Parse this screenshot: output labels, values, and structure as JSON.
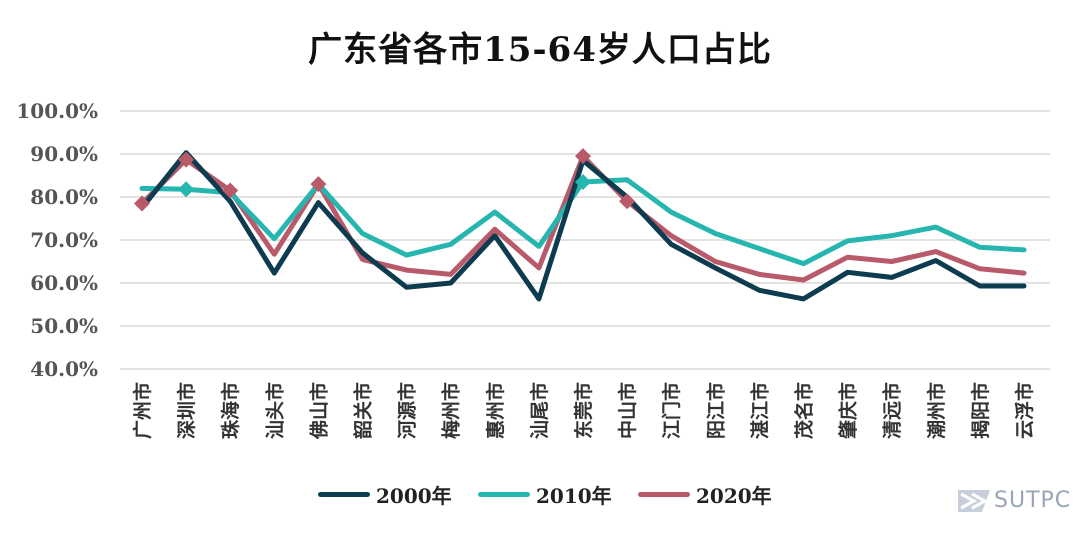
{
  "chart_data": {
    "type": "line",
    "title": "广东省各市15-64岁人口占比",
    "categories": [
      "广州市",
      "深圳市",
      "珠海市",
      "汕头市",
      "佛山市",
      "韶关市",
      "河源市",
      "梅州市",
      "惠州市",
      "汕尾市",
      "东莞市",
      "中山市",
      "江门市",
      "阳江市",
      "湛江市",
      "茂名市",
      "肇庆市",
      "清远市",
      "潮州市",
      "揭阳市",
      "云浮市"
    ],
    "yticks": [
      "100.0%",
      "90.0%",
      "80.0%",
      "70.0%",
      "60.0%",
      "50.0%",
      "40.0%"
    ],
    "ylim": [
      40,
      100
    ],
    "grid": true,
    "legend_position": "bottom",
    "series": [
      {
        "name": "2000年",
        "color": "#0d3b4f",
        "marker": null,
        "values": [
          77.5,
          90.3,
          79.0,
          62.3,
          78.7,
          67.0,
          59.0,
          60.0,
          71.0,
          56.3,
          88.5,
          80.0,
          69.0,
          63.5,
          58.3,
          56.3,
          62.5,
          61.3,
          65.2,
          59.3,
          59.3
        ]
      },
      {
        "name": "2010年",
        "color": "#27b5b0",
        "marker": "diamond",
        "values": [
          82.0,
          81.8,
          81.0,
          70.3,
          83.0,
          71.5,
          66.5,
          69.0,
          76.5,
          68.5,
          83.5,
          84.0,
          76.5,
          71.5,
          68.0,
          64.5,
          69.8,
          71.0,
          73.0,
          68.3,
          67.7
        ]
      },
      {
        "name": "2020年",
        "color": "#b85a6a",
        "marker": "diamond",
        "values": [
          78.5,
          88.7,
          81.5,
          66.7,
          83.0,
          65.5,
          63.0,
          62.0,
          72.5,
          63.5,
          89.5,
          79.0,
          71.0,
          65.0,
          62.0,
          60.7,
          66.0,
          65.0,
          67.3,
          63.3,
          62.3
        ]
      }
    ]
  },
  "watermark": {
    "text": "SUTPC"
  }
}
